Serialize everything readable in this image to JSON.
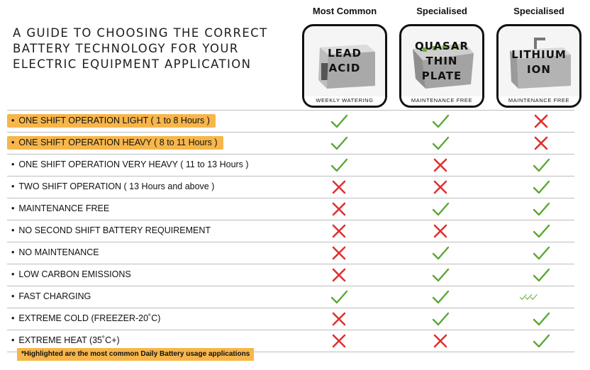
{
  "title": "A GUIDE TO CHOOSING THE CORRECT BATTERY TECHNOLOGY FOR YOUR ELECTRIC EQUIPMENT APPLICATION",
  "columns": [
    {
      "heading": "Most Common",
      "name": "LEAD\nACID",
      "note": "WEEKLY WATERING"
    },
    {
      "heading": "Specialised",
      "name": "QUASAR\nTHIN\nPLATE",
      "note": "MAINTENANCE FREE"
    },
    {
      "heading": "Specialised",
      "name": "LITHIUM\nION",
      "note": "MAINTENANCE FREE"
    }
  ],
  "rows": [
    {
      "label": "ONE SHIFT OPERATION LIGHT  ( 1 to 8 Hours )",
      "highlight": true,
      "marks": [
        "check",
        "check",
        "cross"
      ]
    },
    {
      "label": "ONE SHIFT OPERATION HEAVY ( 8 to 11 Hours )",
      "highlight": true,
      "marks": [
        "check",
        "check",
        "cross"
      ]
    },
    {
      "label": "ONE SHIFT OPERATION VERY HEAVY ( 11 to 13 Hours )",
      "highlight": false,
      "marks": [
        "check",
        "cross",
        "check"
      ]
    },
    {
      "label": "TWO SHIFT OPERATION ( 13 Hours and above )",
      "highlight": false,
      "marks": [
        "cross",
        "cross",
        "check"
      ]
    },
    {
      "label": "MAINTENANCE FREE",
      "highlight": false,
      "marks": [
        "cross",
        "check",
        "check"
      ]
    },
    {
      "label": "NO SECOND SHIFT BATTERY REQUIREMENT",
      "highlight": false,
      "marks": [
        "cross",
        "cross",
        "check"
      ]
    },
    {
      "label": "NO MAINTENANCE",
      "highlight": false,
      "marks": [
        "cross",
        "check",
        "check"
      ]
    },
    {
      "label": "LOW CARBON EMISSIONS",
      "highlight": false,
      "marks": [
        "cross",
        "check",
        "check"
      ]
    },
    {
      "label": "FAST CHARGING",
      "highlight": false,
      "marks": [
        "check",
        "check",
        "triple-check"
      ]
    },
    {
      "label": "EXTREME COLD (FREEZER-20˚C)",
      "highlight": false,
      "marks": [
        "cross",
        "check",
        "check"
      ]
    },
    {
      "label": "EXTREME HEAT (35˚C+)",
      "highlight": false,
      "marks": [
        "cross",
        "cross",
        "check"
      ]
    }
  ],
  "bullet": "•",
  "footnote": "*Highlighted are the most common Daily Battery usage applications",
  "colors": {
    "check": "#5aa832",
    "cross": "#e0312f",
    "highlight": "#f6b64b"
  }
}
